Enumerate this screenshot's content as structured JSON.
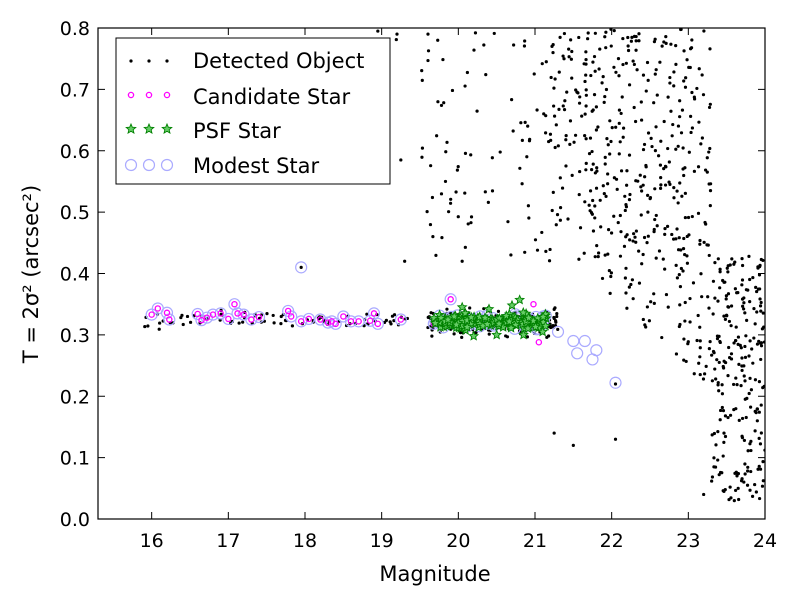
{
  "chart_data": {
    "type": "scatter",
    "xlabel": "Magnitude",
    "ylabel": "T = 2σ² (arcsec²)",
    "xlim": [
      15.3,
      24
    ],
    "ylim": [
      0,
      0.8
    ],
    "xticks": [
      "16",
      "17",
      "18",
      "19",
      "20",
      "21",
      "22",
      "23",
      "24"
    ],
    "yticks": [
      "0.0",
      "0.1",
      "0.2",
      "0.3",
      "0.4",
      "0.5",
      "0.6",
      "0.7",
      "0.8"
    ],
    "grid": false,
    "legend_position": "top-left",
    "colors": {
      "detected": "#000000",
      "candidate": "#ff00ff",
      "psf": "#008000",
      "modest": "#aaaaff"
    },
    "series": [
      {
        "name": "Detected Object",
        "marker": "dot",
        "clusters": [
          {
            "x_range": [
              19.6,
              21.3
            ],
            "y_center": 0.32,
            "y_spread": 0.018,
            "count": 200
          },
          {
            "x_range": [
              15.9,
              19.4
            ],
            "y_center": 0.325,
            "y_spread": 0.012,
            "count": 80
          },
          {
            "x_range": [
              21.2,
              24.0
            ],
            "y_range": [
              0.02,
              0.8
            ],
            "count": 650
          },
          {
            "x_range": [
              19.5,
              21.3
            ],
            "y_range": [
              0.42,
              0.8
            ],
            "count": 90
          },
          {
            "x_range": [
              17.9,
              19.5
            ],
            "y_range": [
              0.58,
              0.8
            ],
            "count": 10
          }
        ],
        "x": [
          17.95,
          19.3,
          20.05,
          21.25,
          21.5,
          22.05,
          22.05,
          23.2,
          23.6,
          23.65,
          23.9,
          19.25,
          19.2,
          18.95
        ],
        "y": [
          0.41,
          0.42,
          0.42,
          0.14,
          0.12,
          0.22,
          0.13,
          0.04,
          0.03,
          0.05,
          0.16,
          0.585,
          0.79,
          0.795
        ]
      },
      {
        "name": "Candidate Star",
        "marker": "circle-small",
        "x": [
          16.0,
          16.08,
          16.2,
          16.23,
          16.6,
          16.65,
          16.72,
          16.8,
          16.9,
          17.0,
          17.08,
          17.12,
          17.2,
          17.3,
          17.4,
          17.78,
          17.82,
          17.95,
          18.05,
          18.2,
          18.3,
          18.35,
          18.4,
          18.5,
          18.6,
          18.7,
          18.85,
          18.9,
          18.95,
          19.25,
          19.68,
          19.9,
          20.98,
          21.05
        ],
        "y": [
          0.333,
          0.343,
          0.336,
          0.325,
          0.334,
          0.324,
          0.328,
          0.333,
          0.335,
          0.326,
          0.35,
          0.335,
          0.333,
          0.325,
          0.329,
          0.339,
          0.33,
          0.322,
          0.326,
          0.325,
          0.32,
          0.322,
          0.318,
          0.33,
          0.322,
          0.322,
          0.323,
          0.335,
          0.318,
          0.325,
          0.318,
          0.358,
          0.35,
          0.288
        ]
      },
      {
        "name": "PSF Star",
        "marker": "star",
        "x_range": [
          19.65,
          21.15
        ],
        "y_center": 0.322,
        "y_spread": 0.01,
        "count": 150,
        "x": [
          20.05,
          20.4,
          20.8,
          20.7,
          20.85,
          20.2,
          20.5,
          21.1
        ],
        "y": [
          0.345,
          0.342,
          0.357,
          0.348,
          0.3,
          0.298,
          0.3,
          0.305
        ]
      },
      {
        "name": "Modest Star",
        "marker": "circle-open",
        "x": [
          16.0,
          16.08,
          16.2,
          16.23,
          16.6,
          16.65,
          16.72,
          16.8,
          16.9,
          17.0,
          17.08,
          17.12,
          17.2,
          17.3,
          17.4,
          17.78,
          17.82,
          17.95,
          18.05,
          18.2,
          18.3,
          18.35,
          18.4,
          18.5,
          18.6,
          18.7,
          18.85,
          18.9,
          18.95,
          19.25,
          19.68,
          19.9,
          21.05,
          21.3,
          21.5,
          21.55,
          21.65,
          21.75,
          21.8,
          22.05,
          17.95
        ],
        "y": [
          0.333,
          0.343,
          0.336,
          0.325,
          0.334,
          0.324,
          0.328,
          0.333,
          0.335,
          0.326,
          0.35,
          0.335,
          0.333,
          0.325,
          0.329,
          0.339,
          0.33,
          0.322,
          0.326,
          0.325,
          0.32,
          0.322,
          0.318,
          0.33,
          0.322,
          0.322,
          0.323,
          0.335,
          0.318,
          0.325,
          0.318,
          0.358,
          0.31,
          0.305,
          0.29,
          0.27,
          0.29,
          0.26,
          0.275,
          0.222,
          0.41
        ]
      }
    ]
  }
}
